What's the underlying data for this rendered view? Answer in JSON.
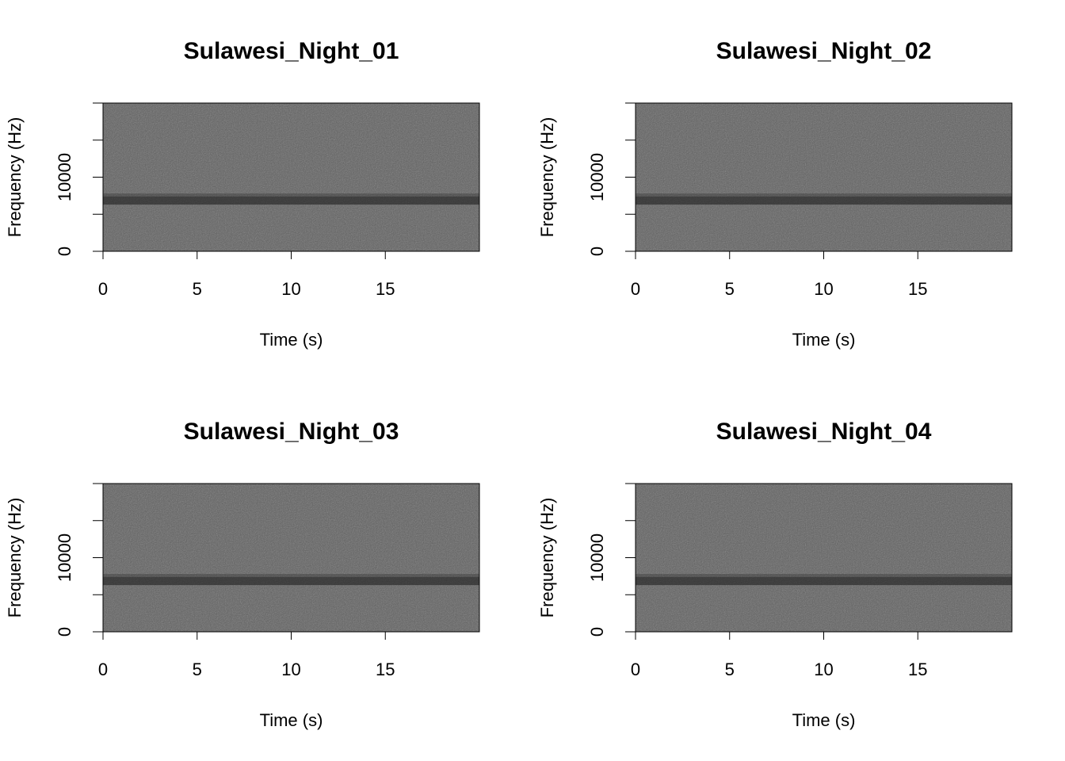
{
  "chart_data": [
    {
      "type": "spectrogram",
      "title": "Sulawesi_Night_01",
      "xlabel": "Time (s)",
      "ylabel": "Frequency (Hz)",
      "xlim": [
        0,
        20
      ],
      "ylim": [
        0,
        20000
      ],
      "xticks": [
        0,
        5,
        10,
        15
      ],
      "yticks": [
        0,
        10000
      ],
      "yminorticks": [
        5000,
        15000,
        20000
      ]
    },
    {
      "type": "spectrogram",
      "title": "Sulawesi_Night_02",
      "xlabel": "Time (s)",
      "ylabel": "Frequency (Hz)",
      "xlim": [
        0,
        20
      ],
      "ylim": [
        0,
        20000
      ],
      "xticks": [
        0,
        5,
        10,
        15
      ],
      "yticks": [
        0,
        10000
      ],
      "yminorticks": [
        5000,
        15000,
        20000
      ]
    },
    {
      "type": "spectrogram",
      "title": "Sulawesi_Night_03",
      "xlabel": "Time (s)",
      "ylabel": "Frequency (Hz)",
      "xlim": [
        0,
        20
      ],
      "ylim": [
        0,
        20000
      ],
      "xticks": [
        0,
        5,
        10,
        15
      ],
      "yticks": [
        0,
        10000
      ],
      "yminorticks": [
        5000,
        15000,
        20000
      ]
    },
    {
      "type": "spectrogram",
      "title": "Sulawesi_Night_04",
      "xlabel": "Time (s)",
      "ylabel": "Frequency (Hz)",
      "xlim": [
        0,
        20
      ],
      "ylim": [
        0,
        20000
      ],
      "xticks": [
        0,
        5,
        10,
        15
      ],
      "yticks": [
        0,
        10000
      ],
      "yminorticks": [
        5000,
        15000,
        20000
      ]
    }
  ]
}
